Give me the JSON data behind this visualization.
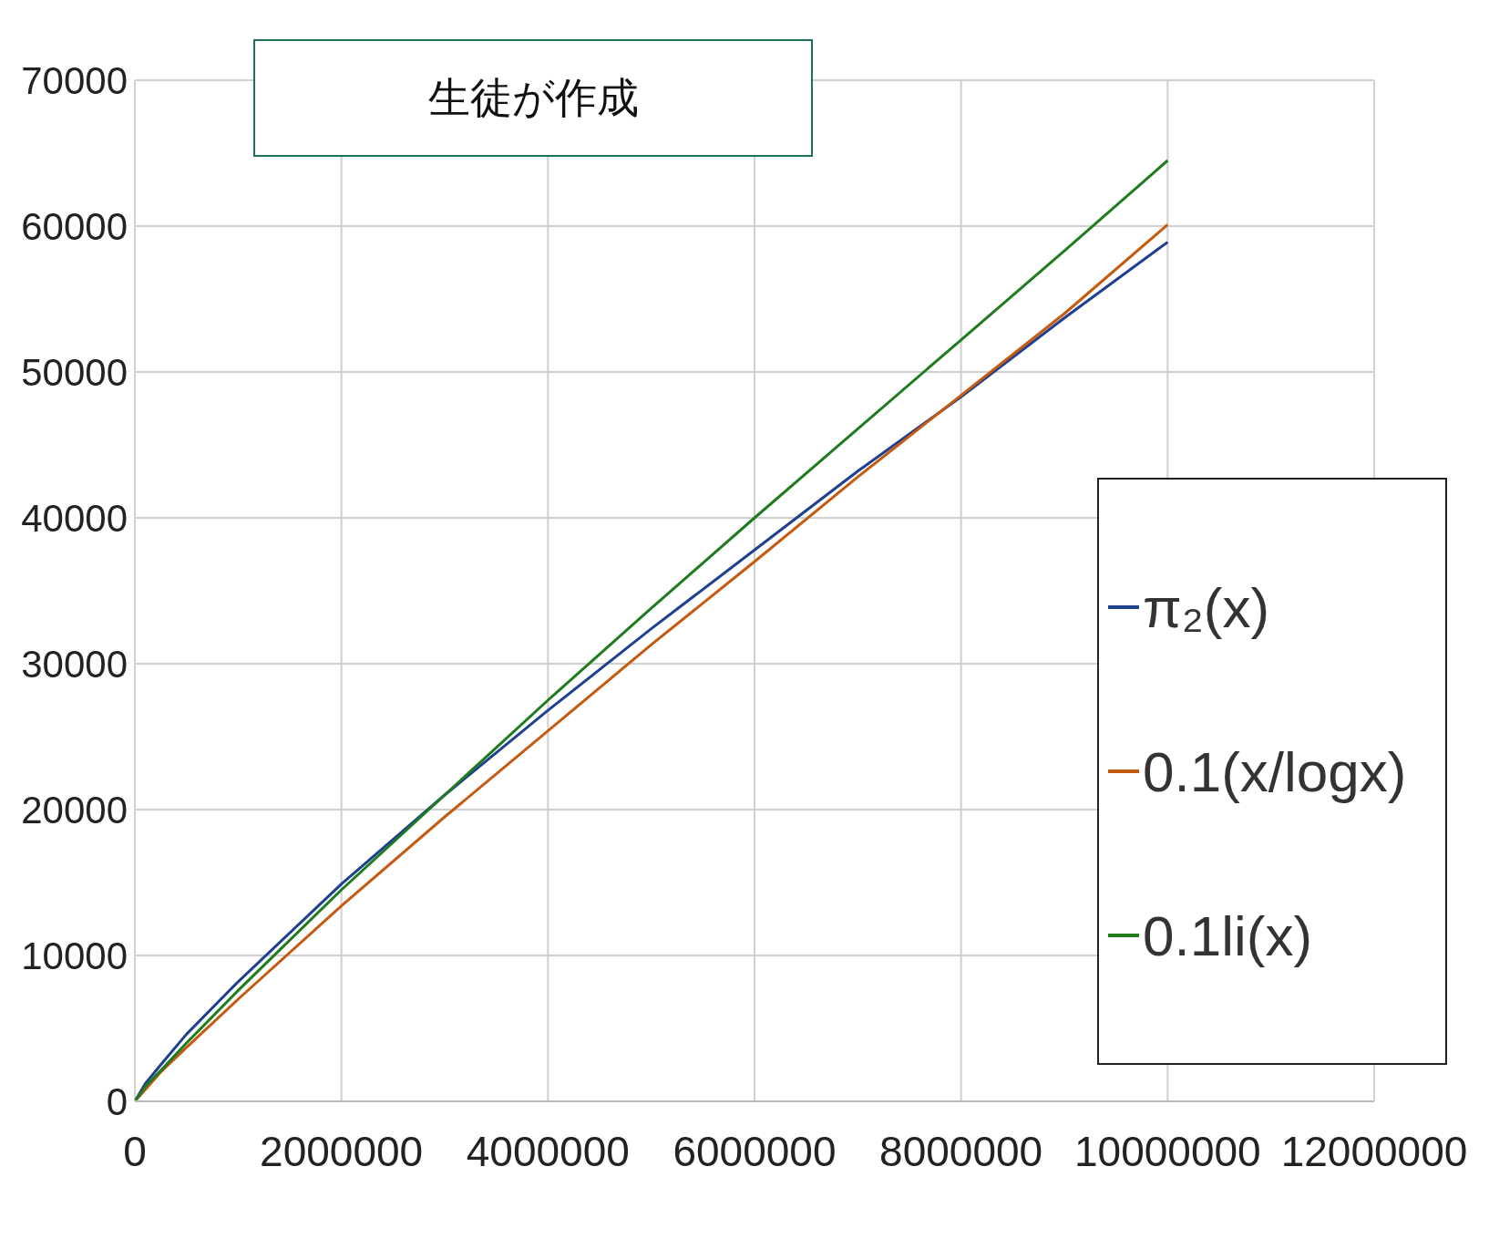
{
  "chart_data": {
    "type": "line",
    "x": [
      0,
      100000,
      250000,
      500000,
      1000000,
      2000000,
      3000000,
      4000000,
      5000000,
      6000000,
      7000000,
      8000000,
      9000000,
      10000000
    ],
    "series": [
      {
        "name": "π₂(x)",
        "color": "#1f3f8f",
        "values": [
          0,
          1200,
          2500,
          4600,
          8200,
          14900,
          21000,
          26800,
          32400,
          37800,
          43200,
          48300,
          53700,
          58900
        ]
      },
      {
        "name": "0.1(x/logx)",
        "color": "#c55a11",
        "values": [
          0,
          800,
          2000,
          3700,
          7000,
          13400,
          19500,
          25400,
          31300,
          37000,
          42800,
          48400,
          54000,
          60100
        ]
      },
      {
        "name": "0.1li(x)",
        "color": "#1e7b1e",
        "values": [
          0,
          1000,
          2100,
          4000,
          7600,
          14500,
          21000,
          27500,
          33800,
          40000,
          46100,
          52200,
          58300,
          64500
        ]
      }
    ],
    "xlim": [
      0,
      12000000
    ],
    "xticks": [
      0,
      2000000,
      4000000,
      6000000,
      8000000,
      10000000,
      12000000
    ],
    "ylim": [
      0,
      70000
    ],
    "yticks": [
      0,
      10000,
      20000,
      30000,
      40000,
      50000,
      60000,
      70000
    ],
    "grid": true,
    "legend": "bottom right",
    "marker": "none",
    "line_style": "solid",
    "annotations": [
      "生徒が作成"
    ]
  }
}
